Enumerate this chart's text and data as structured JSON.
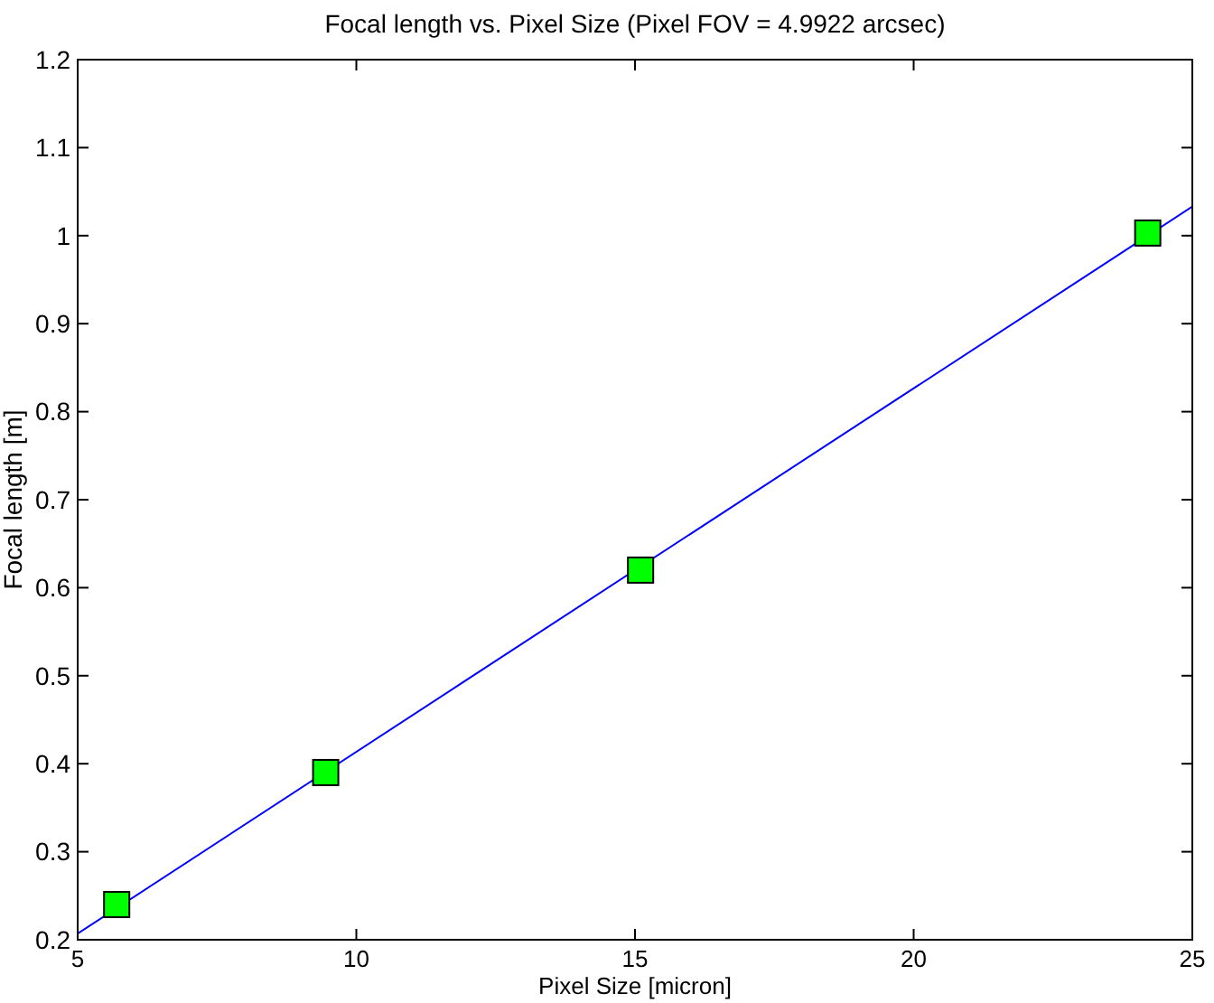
{
  "chart_data": {
    "type": "line",
    "title": "Focal length  vs. Pixel Size (Pixel FOV = 4.9922 arcsec)",
    "xlabel": "Pixel Size [micron]",
    "ylabel": "Focal length [m]",
    "xlim": [
      5,
      25
    ],
    "xticks": [
      5,
      10,
      15,
      20,
      25
    ],
    "ylim": [
      0.2,
      1.2
    ],
    "yticks": [
      0.2,
      0.3,
      0.4,
      0.5,
      0.6,
      0.7,
      0.8,
      0.9,
      1,
      1.1,
      1.2
    ],
    "grid": false,
    "series": [
      {
        "color": "#0000ff",
        "x": [
          5,
          25
        ],
        "values": [
          0.207,
          1.033
        ],
        "marker": "none",
        "line_style": "solid"
      },
      {
        "type": "scatter",
        "color": "#00ff00",
        "x": [
          5.7,
          9.45,
          15.1,
          24.2
        ],
        "values": [
          0.24,
          0.39,
          0.62,
          1.003
        ],
        "marker": "square"
      }
    ]
  }
}
